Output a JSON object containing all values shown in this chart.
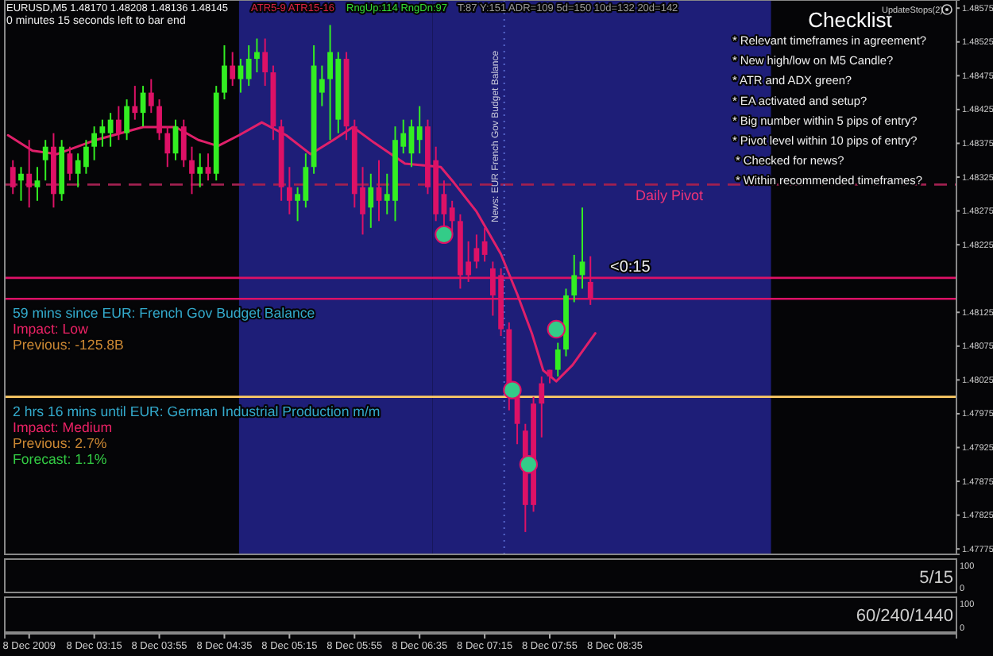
{
  "chart_data": {
    "type": "candlestick",
    "title": "EURUSD,M5  1.48170 1.48208 1.48136 1.48145",
    "subtitle": "0 minutes 15 seconds left to bar end",
    "x": [
      "2009-12-08T02:25",
      "2009-12-08T02:30",
      "2009-12-08T02:35",
      "2009-12-08T02:40",
      "2009-12-08T02:45",
      "2009-12-08T02:50",
      "2009-12-08T02:55",
      "2009-12-08T03:00",
      "2009-12-08T03:05",
      "2009-12-08T03:10",
      "2009-12-08T03:15",
      "2009-12-08T03:20",
      "2009-12-08T03:25",
      "2009-12-08T03:30",
      "2009-12-08T03:35",
      "2009-12-08T03:40",
      "2009-12-08T03:45",
      "2009-12-08T03:50",
      "2009-12-08T03:55",
      "2009-12-08T04:00",
      "2009-12-08T04:05",
      "2009-12-08T04:10",
      "2009-12-08T04:15",
      "2009-12-08T04:20",
      "2009-12-08T04:25",
      "2009-12-08T04:30",
      "2009-12-08T04:35",
      "2009-12-08T04:40",
      "2009-12-08T04:45",
      "2009-12-08T04:50",
      "2009-12-08T04:55",
      "2009-12-08T05:00",
      "2009-12-08T05:05",
      "2009-12-08T05:10",
      "2009-12-08T05:15",
      "2009-12-08T05:20",
      "2009-12-08T05:25",
      "2009-12-08T05:30",
      "2009-12-08T05:35",
      "2009-12-08T05:40",
      "2009-12-08T05:45",
      "2009-12-08T05:50",
      "2009-12-08T05:55",
      "2009-12-08T06:00",
      "2009-12-08T06:05",
      "2009-12-08T06:10",
      "2009-12-08T06:15",
      "2009-12-08T06:20",
      "2009-12-08T06:25",
      "2009-12-08T06:30",
      "2009-12-08T06:35",
      "2009-12-08T06:40",
      "2009-12-08T06:45",
      "2009-12-08T06:50",
      "2009-12-08T06:55",
      "2009-12-08T07:00",
      "2009-12-08T07:05",
      "2009-12-08T07:10",
      "2009-12-08T07:15",
      "2009-12-08T07:20",
      "2009-12-08T07:25",
      "2009-12-08T07:30",
      "2009-12-08T07:35",
      "2009-12-08T07:40",
      "2009-12-08T07:45",
      "2009-12-08T07:50",
      "2009-12-08T07:55",
      "2009-12-08T08:00",
      "2009-12-08T08:05",
      "2009-12-08T08:10",
      "2009-12-08T08:15",
      "2009-12-08T08:20"
    ],
    "ohlc": [
      [
        1.4834,
        1.4835,
        1.483,
        1.4831
      ],
      [
        1.4832,
        1.4834,
        1.4829,
        1.4833
      ],
      [
        1.4833,
        1.4838,
        1.4828,
        1.4831
      ],
      [
        1.4831,
        1.4834,
        1.4829,
        1.4832
      ],
      [
        1.4835,
        1.4838,
        1.4832,
        1.4837
      ],
      [
        1.4837,
        1.4839,
        1.4828,
        1.483
      ],
      [
        1.483,
        1.4838,
        1.4829,
        1.4837
      ],
      [
        1.4836,
        1.4837,
        1.4832,
        1.4833
      ],
      [
        1.4833,
        1.4836,
        1.4831,
        1.4835
      ],
      [
        1.4834,
        1.4838,
        1.4833,
        1.4837
      ],
      [
        1.4837,
        1.484,
        1.4835,
        1.4839
      ],
      [
        1.4839,
        1.4841,
        1.4837,
        1.484
      ],
      [
        1.4839,
        1.4842,
        1.4837,
        1.4841
      ],
      [
        1.4841,
        1.4843,
        1.4838,
        1.4839
      ],
      [
        1.4839,
        1.4844,
        1.4838,
        1.4843
      ],
      [
        1.4843,
        1.4846,
        1.4841,
        1.4842
      ],
      [
        1.4842,
        1.4846,
        1.484,
        1.4845
      ],
      [
        1.4845,
        1.4847,
        1.4842,
        1.4843
      ],
      [
        1.4843,
        1.4844,
        1.4838,
        1.4839
      ],
      [
        1.4839,
        1.484,
        1.4834,
        1.4836
      ],
      [
        1.4836,
        1.4841,
        1.4835,
        1.484
      ],
      [
        1.484,
        1.4841,
        1.4834,
        1.4835
      ],
      [
        1.4835,
        1.4837,
        1.483,
        1.4833
      ],
      [
        1.4833,
        1.4836,
        1.4831,
        1.4834
      ],
      [
        1.4834,
        1.4836,
        1.4832,
        1.4833
      ],
      [
        1.4833,
        1.4846,
        1.4832,
        1.4845
      ],
      [
        1.4845,
        1.4852,
        1.4844,
        1.4849
      ],
      [
        1.4849,
        1.4851,
        1.4846,
        1.4847
      ],
      [
        1.4847,
        1.485,
        1.4845,
        1.4849
      ],
      [
        1.4847,
        1.4852,
        1.4846,
        1.485
      ],
      [
        1.485,
        1.4853,
        1.4848,
        1.4851
      ],
      [
        1.4851,
        1.4853,
        1.4846,
        1.4848
      ],
      [
        1.4848,
        1.4849,
        1.4838,
        1.484
      ],
      [
        1.484,
        1.4841,
        1.4829,
        1.4831
      ],
      [
        1.4831,
        1.4834,
        1.4827,
        1.4829
      ],
      [
        1.4829,
        1.4831,
        1.4826,
        1.483
      ],
      [
        1.4829,
        1.4836,
        1.4828,
        1.4834
      ],
      [
        1.4834,
        1.4852,
        1.4833,
        1.4849
      ],
      [
        1.4845,
        1.4849,
        1.4843,
        1.4847
      ],
      [
        1.4847,
        1.4855,
        1.4838,
        1.4851
      ],
      [
        1.4841,
        1.4851,
        1.4839,
        1.485
      ],
      [
        1.485,
        1.4851,
        1.4838,
        1.484
      ],
      [
        1.484,
        1.4841,
        1.4828,
        1.483
      ],
      [
        1.4831,
        1.4834,
        1.4824,
        1.4827
      ],
      [
        1.4828,
        1.4833,
        1.4825,
        1.4831
      ],
      [
        1.4831,
        1.4835,
        1.4826,
        1.4829
      ],
      [
        1.4829,
        1.4833,
        1.4827,
        1.483
      ],
      [
        1.4829,
        1.484,
        1.4826,
        1.4838
      ],
      [
        1.4837,
        1.4841,
        1.4836,
        1.4839
      ],
      [
        1.4836,
        1.4841,
        1.4834,
        1.484
      ],
      [
        1.4838,
        1.4843,
        1.4836,
        1.484
      ],
      [
        1.484,
        1.4841,
        1.483,
        1.4831
      ],
      [
        1.4835,
        1.4837,
        1.4826,
        1.4827
      ],
      [
        1.483,
        1.4832,
        1.4825,
        1.4827
      ],
      [
        1.4828,
        1.4829,
        1.4824,
        1.4826
      ],
      [
        1.4826,
        1.4827,
        1.4816,
        1.4818
      ],
      [
        1.482,
        1.4823,
        1.4817,
        1.4818
      ],
      [
        1.4822,
        1.4824,
        1.4819,
        1.482
      ],
      [
        1.4823,
        1.4825,
        1.482,
        1.4821
      ],
      [
        1.4819,
        1.482,
        1.4812,
        1.4815
      ],
      [
        1.4818,
        1.4819,
        1.4809,
        1.481
      ],
      [
        1.481,
        1.4811,
        1.4798,
        1.4801
      ],
      [
        1.4801,
        1.4802,
        1.4793,
        1.4796
      ],
      [
        1.4795,
        1.4796,
        1.478,
        1.4784
      ],
      [
        1.4799,
        1.48,
        1.4783,
        1.4784
      ],
      [
        1.4802,
        1.4803,
        1.4794,
        1.4799
      ],
      [
        1.4804,
        1.4804,
        1.4802,
        1.4803
      ],
      [
        1.4804,
        1.4808,
        1.4803,
        1.4807
      ],
      [
        1.4807,
        1.4816,
        1.4806,
        1.4815
      ],
      [
        1.4815,
        1.4821,
        1.4814,
        1.4818
      ],
      [
        1.4818,
        1.4828,
        1.4816,
        1.482
      ],
      [
        1.4817,
        1.48208,
        1.48136,
        1.48145
      ]
    ],
    "colors": [
      "#dd1166",
      "#33ee22",
      "#dd1166",
      "#33ee22",
      "#33ee22",
      "#dd1166",
      "#33ee22",
      "#dd1166",
      "#33ee22",
      "#33ee22",
      "#33ee22",
      "#33ee22",
      "#33ee22",
      "#dd1166",
      "#33ee22",
      "#dd1166",
      "#33ee22",
      "#dd1166",
      "#dd1166",
      "#dd1166",
      "#33ee22",
      "#dd1166",
      "#dd1166",
      "#33ee22",
      "#dd1166",
      "#33ee22",
      "#33ee22",
      "#dd1166",
      "#33ee22",
      "#33ee22",
      "#33ee22",
      "#dd1166",
      "#dd1166",
      "#dd1166",
      "#dd1166",
      "#33ee22",
      "#33ee22",
      "#33ee22",
      "#33ee22",
      "#33ee22",
      "#33ee22",
      "#dd1166",
      "#dd1166",
      "#dd1166",
      "#33ee22",
      "#dd1166",
      "#33ee22",
      "#33ee22",
      "#33ee22",
      "#33ee22",
      "#33ee22",
      "#dd1166",
      "#dd1166",
      "#dd1166",
      "#dd1166",
      "#dd1166",
      "#dd1166",
      "#dd1166",
      "#dd1166",
      "#dd1166",
      "#dd1166",
      "#dd1166",
      "#dd1166",
      "#dd1166",
      "#dd1166",
      "#dd1166",
      "#dd1166",
      "#33ee22",
      "#33ee22",
      "#33ee22",
      "#33ee22",
      "#dd1166"
    ],
    "series": [
      {
        "type": "line",
        "color": "#e0206a",
        "x": [
          "2009-12-08T02:22",
          "2009-12-08T02:37",
          "2009-12-08T02:52",
          "2009-12-08T03:16",
          "2009-12-08T03:45",
          "2009-12-08T04:05",
          "2009-12-08T04:19",
          "2009-12-08T04:31",
          "2009-12-08T04:44",
          "2009-12-08T04:58",
          "2009-12-08T05:13",
          "2009-12-08T05:28",
          "2009-12-08T05:42",
          "2009-12-08T05:54",
          "2009-12-08T06:07",
          "2009-12-08T06:26",
          "2009-12-08T06:48",
          "2009-12-08T06:56",
          "2009-12-08T07:10",
          "2009-12-08T07:25",
          "2009-12-08T07:35",
          "2009-12-08T07:44",
          "2009-12-08T07:51",
          "2009-12-08T07:59",
          "2009-12-08T08:09",
          "2009-12-08T08:23"
        ],
        "values": [
          1.48387,
          1.48364,
          1.48359,
          1.4838,
          1.48399,
          1.48399,
          1.4838,
          1.48371,
          1.48387,
          1.48406,
          1.48387,
          1.48359,
          1.4838,
          1.48399,
          1.48376,
          1.48345,
          1.4834,
          1.48317,
          1.48274,
          1.48211,
          1.48152,
          1.48094,
          1.48039,
          1.48023,
          1.48047,
          1.48094
        ]
      },
      {
        "type": "scatter",
        "color": "#33cc88",
        "marker": "circle",
        "x": [
          "2009-12-08T06:50",
          "2009-12-08T07:32",
          "2009-12-08T07:42",
          "2009-12-08T07:59"
        ],
        "values": [
          1.4824,
          1.4801,
          1.479,
          1.481
        ]
      }
    ],
    "xlim": [
      "2009-12-08T02:20",
      "2009-12-08T12:05"
    ],
    "xticks": [
      {
        "value": "2009-12-08T02:35",
        "label": "8 Dec 2009"
      },
      {
        "value": "2009-12-08T03:15",
        "label": "8 Dec 03:15"
      },
      {
        "value": "2009-12-08T03:55",
        "label": "8 Dec 03:55"
      },
      {
        "value": "2009-12-08T04:35",
        "label": "8 Dec 04:35"
      },
      {
        "value": "2009-12-08T05:15",
        "label": "8 Dec 05:15"
      },
      {
        "value": "2009-12-08T05:55",
        "label": "8 Dec 05:55"
      },
      {
        "value": "2009-12-08T06:35",
        "label": "8 Dec 06:35"
      },
      {
        "value": "2009-12-08T07:15",
        "label": "8 Dec 07:15"
      },
      {
        "value": "2009-12-08T07:55",
        "label": "8 Dec 07:55"
      },
      {
        "value": "2009-12-08T08:35",
        "label": "8 Dec 08:35"
      }
    ],
    "ylim": [
      1.47767,
      1.48587
    ],
    "yticks": [
      1.47775,
      1.47825,
      1.47875,
      1.47925,
      1.47975,
      1.48025,
      1.48075,
      1.48125,
      1.48225,
      1.48275,
      1.48325,
      1.48375,
      1.48425,
      1.48475,
      1.48525,
      1.48575
    ],
    "bands": [
      {
        "axis": "x",
        "from": "2009-12-08T04:44",
        "to": "2009-12-08T06:43",
        "color": "#1e1e78"
      },
      {
        "axis": "x",
        "from": "2009-12-08T06:43",
        "to": "2009-12-08T10:11",
        "color": "#1e1e78"
      }
    ],
    "ref_lines": [
      {
        "axis": "y",
        "value": 1.48314,
        "label": "Daily Pivot",
        "color": "#a02050",
        "line_style": "dashed"
      },
      {
        "axis": "y",
        "value": 1.48176,
        "color": "#dd1166",
        "line_style": "solid"
      },
      {
        "axis": "y",
        "value": 1.48145,
        "color": "#dd1166",
        "line_style": "solid"
      },
      {
        "axis": "y",
        "value": 1.48,
        "color": "#ffcc66",
        "line_style": "solid"
      },
      {
        "axis": "x",
        "value": "2009-12-08T07:27",
        "label": "News: EUR French Gov Budget Balance",
        "color": "#5566cc",
        "line_style": "dotted"
      }
    ],
    "annotations": [
      "ATR5-9  ATR15-16",
      "RngUp:114  RngDn:97",
      "T:87   Y:151  ADR=109  5d=150  10d=132  20d=142",
      "59 mins since EUR: French Gov Budget Balance",
      "Impact: Low",
      "Previous: -125.8B",
      "2 hrs 16 mins until EUR: German Industrial Production m/m",
      "Impact: Medium",
      "Previous: 2.7%",
      "Forecast: 1.1%",
      "Checklist",
      "UpdateStops(2)",
      "* Relevant timeframes in agreement?",
      "* New high/low on M5 Candle?",
      "* ATR and ADX green?",
      "* EA activated and setup?",
      "* Big number within 5 pips of entry?",
      "* Pivot level within 10 pips of entry?",
      "* Checked for news?",
      "* Within recommended timeframes?",
      "<0:15",
      "5/15",
      "60/240/1440",
      "100",
      "0",
      "100",
      "0"
    ]
  }
}
